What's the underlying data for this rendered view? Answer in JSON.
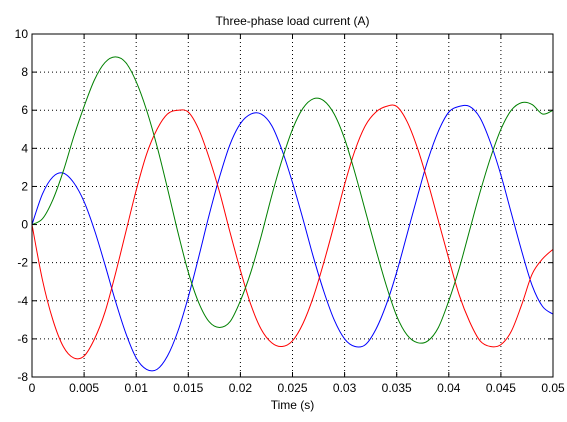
{
  "chart_data": {
    "type": "line",
    "title": "Three-phase load current (A)",
    "xlabel": "Time (s)",
    "ylabel": "",
    "xlim": [
      0,
      0.05
    ],
    "ylim": [
      -8,
      10
    ],
    "xticks": [
      0,
      0.005,
      0.01,
      0.015,
      0.02,
      0.025,
      0.03,
      0.035,
      0.04,
      0.045,
      0.05
    ],
    "xtick_labels": [
      "0",
      "0.005",
      "0.01",
      "0.015",
      "0.02",
      "0.025",
      "0.03",
      "0.035",
      "0.04",
      "0.045",
      "0.05"
    ],
    "yticks": [
      -8,
      -6,
      -4,
      -2,
      0,
      2,
      4,
      6,
      8,
      10
    ],
    "ytick_labels": [
      "-8",
      "-6",
      "-4",
      "-2",
      "0",
      "2",
      "4",
      "6",
      "8",
      "10"
    ],
    "grid": true,
    "series": [
      {
        "color": "#0000ff",
        "x": [
          0,
          0.001,
          0.002,
          0.003,
          0.004,
          0.005,
          0.006,
          0.007,
          0.008,
          0.009,
          0.01,
          0.011,
          0.012,
          0.013,
          0.014,
          0.015,
          0.016,
          0.017,
          0.018,
          0.019,
          0.02,
          0.021,
          0.022,
          0.023,
          0.024,
          0.025,
          0.026,
          0.027,
          0.028,
          0.029,
          0.03,
          0.031,
          0.032,
          0.033,
          0.034,
          0.035,
          0.036,
          0.037,
          0.038,
          0.039,
          0.04,
          0.041,
          0.042,
          0.043,
          0.044,
          0.045,
          0.046,
          0.047,
          0.048,
          0.049,
          0.05
        ],
        "y": [
          0,
          1.6,
          2.5,
          2.7,
          2.2,
          1.2,
          -0.3,
          -2.1,
          -4.0,
          -5.7,
          -7.0,
          -7.6,
          -7.6,
          -6.9,
          -5.6,
          -3.8,
          -1.7,
          0.5,
          2.5,
          4.2,
          5.3,
          5.8,
          5.8,
          5.2,
          3.9,
          2.2,
          0.3,
          -1.7,
          -3.5,
          -5.0,
          -6.0,
          -6.4,
          -6.3,
          -5.5,
          -4.2,
          -2.5,
          -0.5,
          1.5,
          3.4,
          4.9,
          5.9,
          6.2,
          6.2,
          5.6,
          4.3,
          2.6,
          0.6,
          -1.4,
          -3.2,
          -4.3,
          -4.7
        ]
      },
      {
        "color": "#ff0000",
        "x": [
          0,
          0.001,
          0.002,
          0.003,
          0.004,
          0.005,
          0.006,
          0.007,
          0.008,
          0.009,
          0.01,
          0.011,
          0.012,
          0.013,
          0.014,
          0.015,
          0.016,
          0.017,
          0.018,
          0.019,
          0.02,
          0.021,
          0.022,
          0.023,
          0.024,
          0.025,
          0.026,
          0.027,
          0.028,
          0.029,
          0.03,
          0.031,
          0.032,
          0.033,
          0.034,
          0.035,
          0.036,
          0.037,
          0.038,
          0.039,
          0.04,
          0.041,
          0.042,
          0.043,
          0.044,
          0.045,
          0.046,
          0.047,
          0.048,
          0.049,
          0.05
        ],
        "y": [
          0,
          -2.9,
          -5.0,
          -6.4,
          -7.0,
          -6.9,
          -6.0,
          -4.6,
          -2.6,
          -0.4,
          1.8,
          3.7,
          5.0,
          5.8,
          6.0,
          5.9,
          5.0,
          3.5,
          1.7,
          -0.4,
          -2.4,
          -4.2,
          -5.5,
          -6.2,
          -6.4,
          -6.1,
          -5.2,
          -3.8,
          -2.0,
          0,
          2.1,
          3.9,
          5.2,
          5.9,
          6.2,
          6.2,
          5.4,
          4.0,
          2.2,
          0.2,
          -1.8,
          -3.7,
          -5.1,
          -6.1,
          -6.4,
          -6.3,
          -5.6,
          -4.2,
          -2.6,
          -1.8,
          -1.3
        ]
      },
      {
        "color": "#008000",
        "x": [
          0,
          0.001,
          0.002,
          0.003,
          0.004,
          0.005,
          0.006,
          0.007,
          0.008,
          0.009,
          0.01,
          0.011,
          0.012,
          0.013,
          0.014,
          0.015,
          0.016,
          0.017,
          0.018,
          0.019,
          0.02,
          0.021,
          0.022,
          0.023,
          0.024,
          0.025,
          0.026,
          0.027,
          0.028,
          0.029,
          0.03,
          0.031,
          0.032,
          0.033,
          0.034,
          0.035,
          0.036,
          0.037,
          0.038,
          0.039,
          0.04,
          0.041,
          0.042,
          0.043,
          0.044,
          0.045,
          0.046,
          0.047,
          0.048,
          0.049,
          0.05
        ],
        "y": [
          0,
          0.3,
          1.3,
          2.8,
          4.6,
          6.2,
          7.6,
          8.5,
          8.8,
          8.5,
          7.5,
          6.0,
          4.1,
          1.9,
          -0.4,
          -2.5,
          -4.1,
          -5.1,
          -5.4,
          -5.1,
          -4.0,
          -2.5,
          -0.6,
          1.5,
          3.4,
          5.0,
          6.1,
          6.6,
          6.5,
          5.8,
          4.5,
          2.7,
          0.7,
          -1.3,
          -3.2,
          -4.8,
          -5.8,
          -6.2,
          -6.1,
          -5.4,
          -4.0,
          -2.3,
          -0.3,
          1.7,
          3.5,
          5.0,
          6.0,
          6.4,
          6.3,
          5.8,
          6.0
        ]
      }
    ]
  }
}
